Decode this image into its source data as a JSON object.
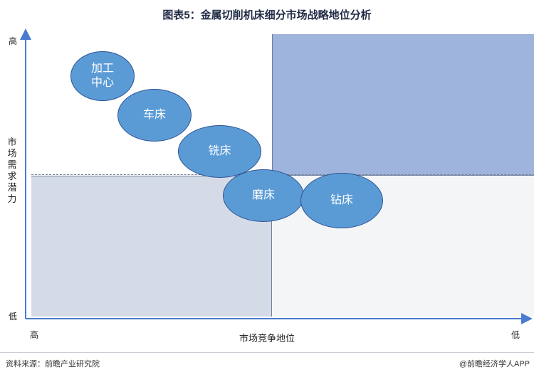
{
  "title": "图表5：金属切削机床细分市场战略地位分析",
  "y_axis": {
    "label": "市场需求潜力",
    "high": "高",
    "low": "低"
  },
  "x_axis": {
    "label": "市场竞争地位",
    "high": "高",
    "low": "低"
  },
  "bubbles": [
    {
      "label": "加工\n中心"
    },
    {
      "label": "车床"
    },
    {
      "label": "铣床"
    },
    {
      "label": "磨床"
    },
    {
      "label": "钻床"
    }
  ],
  "footer": {
    "source": "资料来源：前瞻产业研究院",
    "brand": "@前瞻经济学人APP"
  },
  "colors": {
    "bubble_fill": "#5b9bd5",
    "bubble_border": "#2f5597",
    "quadrant_top_right": "#9fb4dc",
    "quadrant_bottom_left": "#d4dbe6",
    "quadrant_bottom_right": "#f4f5f7",
    "axis": "#4a7bd0"
  }
}
